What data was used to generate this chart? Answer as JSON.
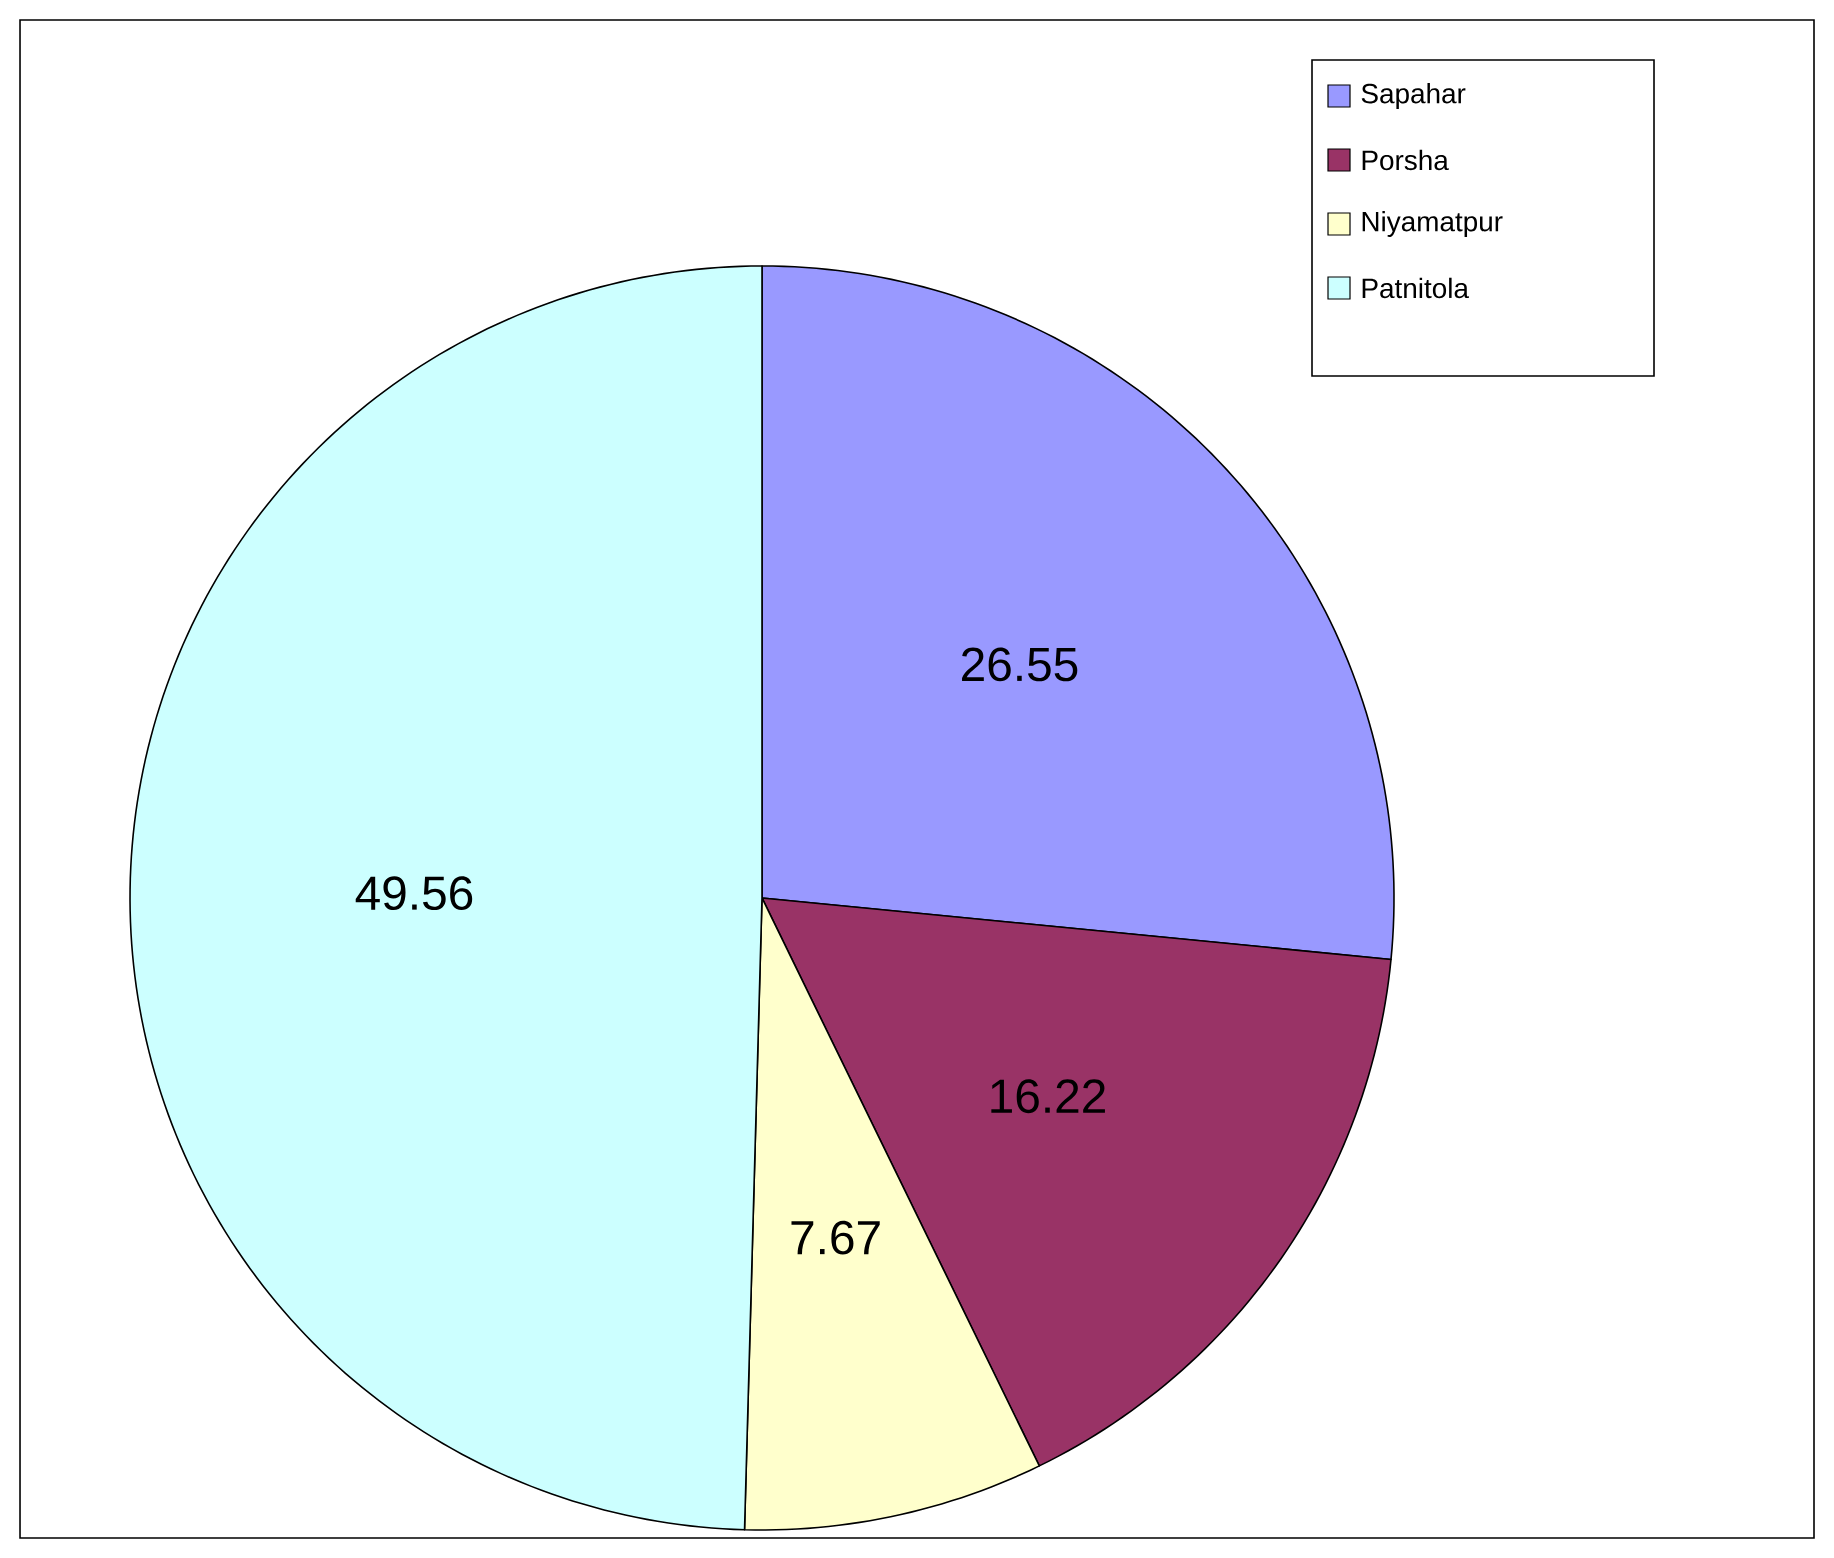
{
  "chart_data": {
    "type": "pie",
    "categories": [
      "Sapahar",
      "Porsha",
      "Niyamatpur",
      "Patnitola"
    ],
    "values": [
      26.55,
      16.22,
      7.67,
      49.56
    ],
    "colors": [
      "#9999ff",
      "#993366",
      "#ffffcc",
      "#ccffff"
    ],
    "data_labels": true,
    "legend": "top right"
  }
}
